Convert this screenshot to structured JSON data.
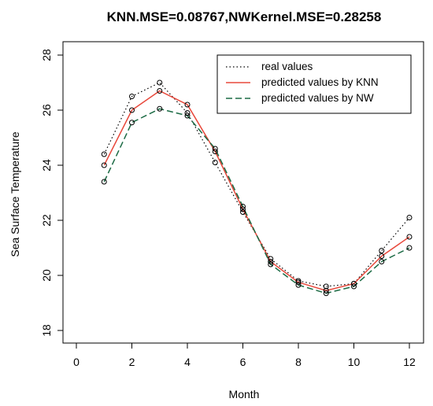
{
  "chart_data": {
    "type": "line",
    "title": "KNN.MSE=0.08767,NWKernel.MSE=0.28258",
    "xlabel": "Month",
    "ylabel": "Sea Surface Temperature",
    "xlim": [
      0,
      12
    ],
    "ylim": [
      18,
      28
    ],
    "x_ticks": [
      "0",
      "2",
      "4",
      "6",
      "8",
      "10",
      "12"
    ],
    "y_ticks": [
      "18",
      "20",
      "22",
      "24",
      "26",
      "28"
    ],
    "grid": false,
    "legend_position": "top-right",
    "x": [
      1,
      2,
      3,
      4,
      5,
      6,
      7,
      8,
      9,
      10,
      11,
      12
    ],
    "series": [
      {
        "name": "real values",
        "color": "#000000",
        "line_style": "dotted",
        "values": [
          24.4,
          26.5,
          27.0,
          25.9,
          24.1,
          22.3,
          20.6,
          19.8,
          19.6,
          19.7,
          20.9,
          22.1
        ]
      },
      {
        "name": "predicted values by KNN",
        "color": "#e8483b",
        "line_style": "solid",
        "values": [
          24.0,
          26.0,
          26.7,
          26.2,
          24.5,
          22.4,
          20.5,
          19.75,
          19.45,
          19.7,
          20.7,
          21.4
        ]
      },
      {
        "name": "predicted values by NW",
        "color": "#1c6b45",
        "line_style": "dashed",
        "values": [
          23.4,
          25.55,
          26.05,
          25.8,
          24.6,
          22.5,
          20.4,
          19.65,
          19.35,
          19.6,
          20.5,
          21.0
        ]
      }
    ],
    "point_marker": "open-circle"
  }
}
